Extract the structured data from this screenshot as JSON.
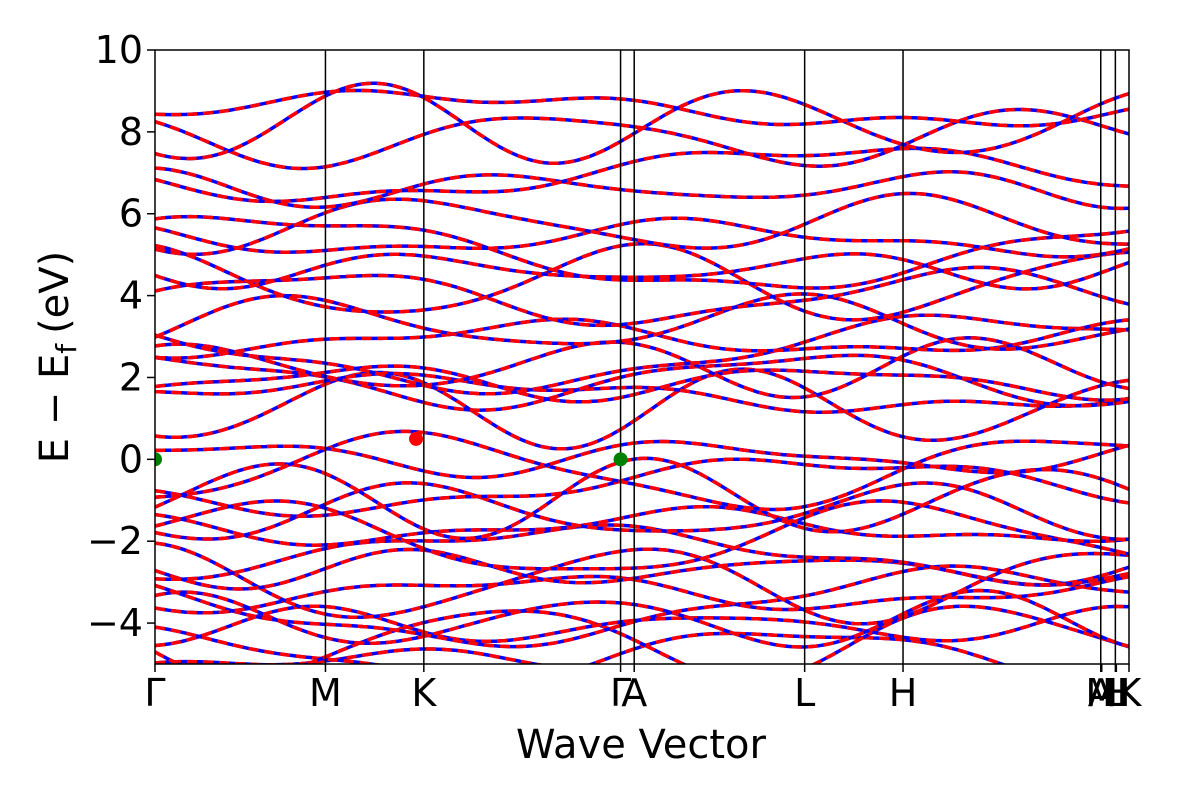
{
  "chart_data": {
    "type": "line",
    "title": "",
    "xlabel": "Wave Vector",
    "ylabel_main": "E − E",
    "ylabel_sub": "f",
    "ylabel_unit": "(eV)",
    "ylim": [
      -5,
      10
    ],
    "yticks": [
      -4,
      -2,
      0,
      2,
      4,
      6,
      8,
      10
    ],
    "ytick_labels": [
      "−4",
      "−2",
      "0",
      "2",
      "4",
      "6",
      "8",
      "10"
    ],
    "kpath": [
      {
        "label": "Γ",
        "x": 0.0
      },
      {
        "label": "M",
        "x": 0.175
      },
      {
        "label": "K",
        "x": 0.276
      },
      {
        "label": "Γ",
        "x": 0.478
      },
      {
        "label": "A",
        "x": 0.492
      },
      {
        "label": "L",
        "x": 0.667
      },
      {
        "label": "H",
        "x": 0.768
      },
      {
        "label": "A",
        "x": 0.971
      },
      {
        "label": "L",
        "x": 0.986
      },
      {
        "label": "M",
        "x": 0.972
      },
      {
        "label": "H",
        "x": 0.987
      },
      {
        "label": "K",
        "x": 1.0
      }
    ],
    "vlines": [
      0.175,
      0.276,
      0.478,
      0.492,
      0.667,
      0.768,
      0.971,
      0.986
    ],
    "series": [
      {
        "style": "solid",
        "color": "#0000ff"
      },
      {
        "style": "dashed",
        "color": "#ff0000"
      }
    ],
    "valence_band_max": [
      {
        "x": 0.0,
        "y": 0.0,
        "color": "#008000"
      },
      {
        "x": 0.478,
        "y": 0.0,
        "color": "#008000"
      }
    ],
    "conduction_band_min": [
      {
        "x": 0.268,
        "y": 0.5,
        "color": "#ff0000"
      }
    ],
    "band_groups": [
      {
        "center": -4.6,
        "count": 4
      },
      {
        "center": -3.6,
        "count": 3
      },
      {
        "center": -2.5,
        "count": 4
      },
      {
        "center": -1.3,
        "count": 3
      },
      {
        "center": -0.3,
        "count": 3
      },
      {
        "center": 1.6,
        "count": 3
      },
      {
        "center": 2.6,
        "count": 5
      },
      {
        "center": 4.3,
        "count": 3
      },
      {
        "center": 5.4,
        "count": 3
      },
      {
        "center": 6.8,
        "count": 2
      },
      {
        "center": 8.2,
        "count": 3
      }
    ]
  }
}
